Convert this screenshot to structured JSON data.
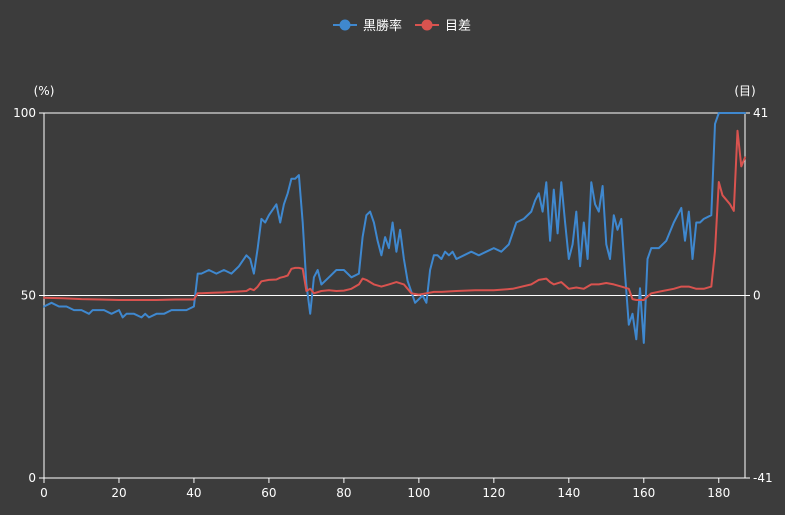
{
  "chart_data": {
    "type": "line",
    "x_range": [
      0,
      187
    ],
    "x_ticks": [
      "0",
      "20",
      "40",
      "60",
      "80",
      "100",
      "120",
      "140",
      "160",
      "180"
    ],
    "y_left": {
      "unit": "(%)",
      "range": [
        0,
        100
      ],
      "ticks": [
        "0",
        "50",
        "100"
      ]
    },
    "y_right": {
      "unit": "(目)",
      "range": [
        -41,
        41
      ],
      "ticks": [
        "-41",
        "0",
        "41"
      ]
    },
    "legend_position": "top-center",
    "grid": "horizontal lines at left-axis ticks",
    "series": [
      {
        "name": "黒勝率",
        "axis": "left",
        "color": "#3f88cf",
        "x": [
          0,
          2,
          4,
          6,
          8,
          10,
          12,
          13,
          14,
          16,
          18,
          20,
          21,
          22,
          24,
          26,
          27,
          28,
          30,
          32,
          34,
          36,
          38,
          40,
          41,
          42,
          44,
          46,
          48,
          50,
          52,
          54,
          55,
          56,
          57,
          58,
          59,
          60,
          62,
          63,
          64,
          65,
          66,
          67,
          68,
          69,
          70,
          71,
          72,
          73,
          74,
          76,
          78,
          80,
          82,
          84,
          85,
          86,
          87,
          88,
          89,
          90,
          91,
          92,
          93,
          94,
          95,
          96,
          97,
          98,
          99,
          100,
          101,
          102,
          103,
          104,
          105,
          106,
          107,
          108,
          109,
          110,
          112,
          114,
          116,
          118,
          120,
          122,
          124,
          126,
          128,
          130,
          131,
          132,
          133,
          134,
          135,
          136,
          137,
          138,
          139,
          140,
          141,
          142,
          143,
          144,
          145,
          146,
          147,
          148,
          149,
          150,
          151,
          152,
          153,
          154,
          155,
          156,
          157,
          158,
          159,
          160,
          161,
          162,
          164,
          166,
          168,
          170,
          171,
          172,
          173,
          174,
          175,
          176,
          178,
          179,
          180,
          181,
          182,
          184,
          186,
          187
        ],
        "values": [
          47,
          48,
          47,
          47,
          46,
          46,
          45,
          46,
          46,
          46,
          45,
          46,
          44,
          45,
          45,
          44,
          45,
          44,
          45,
          45,
          46,
          46,
          46,
          47,
          56,
          56,
          57,
          56,
          57,
          56,
          58,
          61,
          60,
          56,
          63,
          71,
          70,
          72,
          75,
          70,
          75,
          78,
          82,
          82,
          83,
          70,
          53,
          45,
          55,
          57,
          53,
          55,
          57,
          57,
          55,
          56,
          66,
          72,
          73,
          70,
          65,
          61,
          66,
          63,
          70,
          62,
          68,
          60,
          54,
          51,
          48,
          49,
          50,
          48,
          57,
          61,
          61,
          60,
          62,
          61,
          62,
          60,
          61,
          62,
          61,
          62,
          63,
          62,
          64,
          70,
          71,
          73,
          76,
          78,
          73,
          81,
          65,
          79,
          67,
          81,
          70,
          60,
          64,
          73,
          58,
          70,
          60,
          81,
          75,
          73,
          80,
          64,
          60,
          72,
          68,
          71,
          56,
          42,
          45,
          38,
          52,
          37,
          60,
          63,
          63,
          65,
          70,
          74,
          65,
          73,
          60,
          70,
          70,
          71,
          72,
          97,
          100,
          100,
          100,
          100,
          100,
          100
        ]
      },
      {
        "name": "目差",
        "axis": "right",
        "color": "#d9534f",
        "x": [
          0,
          5,
          10,
          15,
          20,
          25,
          30,
          35,
          40,
          41,
          42,
          45,
          48,
          50,
          52,
          54,
          55,
          56,
          57,
          58,
          60,
          62,
          63,
          64,
          65,
          66,
          67,
          68,
          69,
          70,
          71,
          72,
          74,
          76,
          78,
          80,
          82,
          84,
          85,
          86,
          87,
          88,
          90,
          92,
          94,
          96,
          98,
          100,
          102,
          104,
          106,
          110,
          115,
          120,
          125,
          130,
          132,
          134,
          135,
          136,
          138,
          140,
          142,
          144,
          146,
          148,
          150,
          152,
          154,
          156,
          157,
          158,
          160,
          162,
          165,
          168,
          170,
          172,
          174,
          176,
          178,
          179,
          180,
          181,
          182,
          183,
          184,
          185,
          186,
          187
        ],
        "values": [
          -0.5,
          -0.6,
          -0.8,
          -0.9,
          -1.0,
          -1.0,
          -1.0,
          -0.9,
          -0.9,
          0.5,
          0.5,
          0.6,
          0.7,
          0.8,
          0.9,
          1.0,
          1.5,
          1.2,
          2.0,
          3.2,
          3.5,
          3.6,
          4.0,
          4.2,
          4.5,
          6.0,
          6.2,
          6.2,
          6.0,
          1.0,
          1.5,
          0.5,
          1.0,
          1.2,
          1.0,
          1.1,
          1.5,
          2.5,
          3.8,
          3.5,
          3.0,
          2.5,
          2.0,
          2.5,
          3.0,
          2.5,
          0.5,
          0.2,
          0.5,
          0.8,
          0.8,
          1.0,
          1.2,
          1.2,
          1.5,
          2.5,
          3.5,
          3.8,
          3.0,
          2.5,
          3.0,
          1.5,
          1.8,
          1.5,
          2.5,
          2.5,
          2.8,
          2.5,
          2.0,
          1.5,
          -0.8,
          -1.0,
          -1.0,
          0.5,
          1.0,
          1.5,
          2.0,
          2.0,
          1.5,
          1.5,
          2.0,
          10.0,
          25.5,
          22.5,
          21.5,
          20.5,
          19.0,
          37.0,
          29.0,
          31.0
        ]
      }
    ]
  }
}
